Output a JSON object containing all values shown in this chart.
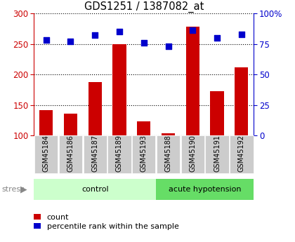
{
  "title": "GDS1251 / 1387082_at",
  "samples": [
    "GSM45184",
    "GSM45186",
    "GSM45187",
    "GSM45189",
    "GSM45193",
    "GSM45188",
    "GSM45190",
    "GSM45191",
    "GSM45192"
  ],
  "counts": [
    142,
    136,
    187,
    249,
    123,
    104,
    278,
    173,
    212
  ],
  "percentiles": [
    78,
    77,
    82,
    85,
    76,
    73,
    86,
    80,
    83
  ],
  "bar_color": "#cc0000",
  "dot_color": "#0000cc",
  "ylim_left": [
    100,
    300
  ],
  "ylim_right": [
    0,
    100
  ],
  "yticks_left": [
    100,
    150,
    200,
    250,
    300
  ],
  "yticks_right": [
    0,
    25,
    50,
    75,
    100
  ],
  "background_color": "#ffffff",
  "sample_cell_color": "#cccccc",
  "control_color_light": "#ccffcc",
  "control_color_dark": "#aaffaa",
  "hypotension_color": "#66dd66",
  "stress_label": "stress",
  "legend_count": "count",
  "legend_percentile": "percentile rank within the sample",
  "group_spans": [
    [
      0,
      4,
      "control"
    ],
    [
      5,
      8,
      "acute hypotension"
    ]
  ]
}
